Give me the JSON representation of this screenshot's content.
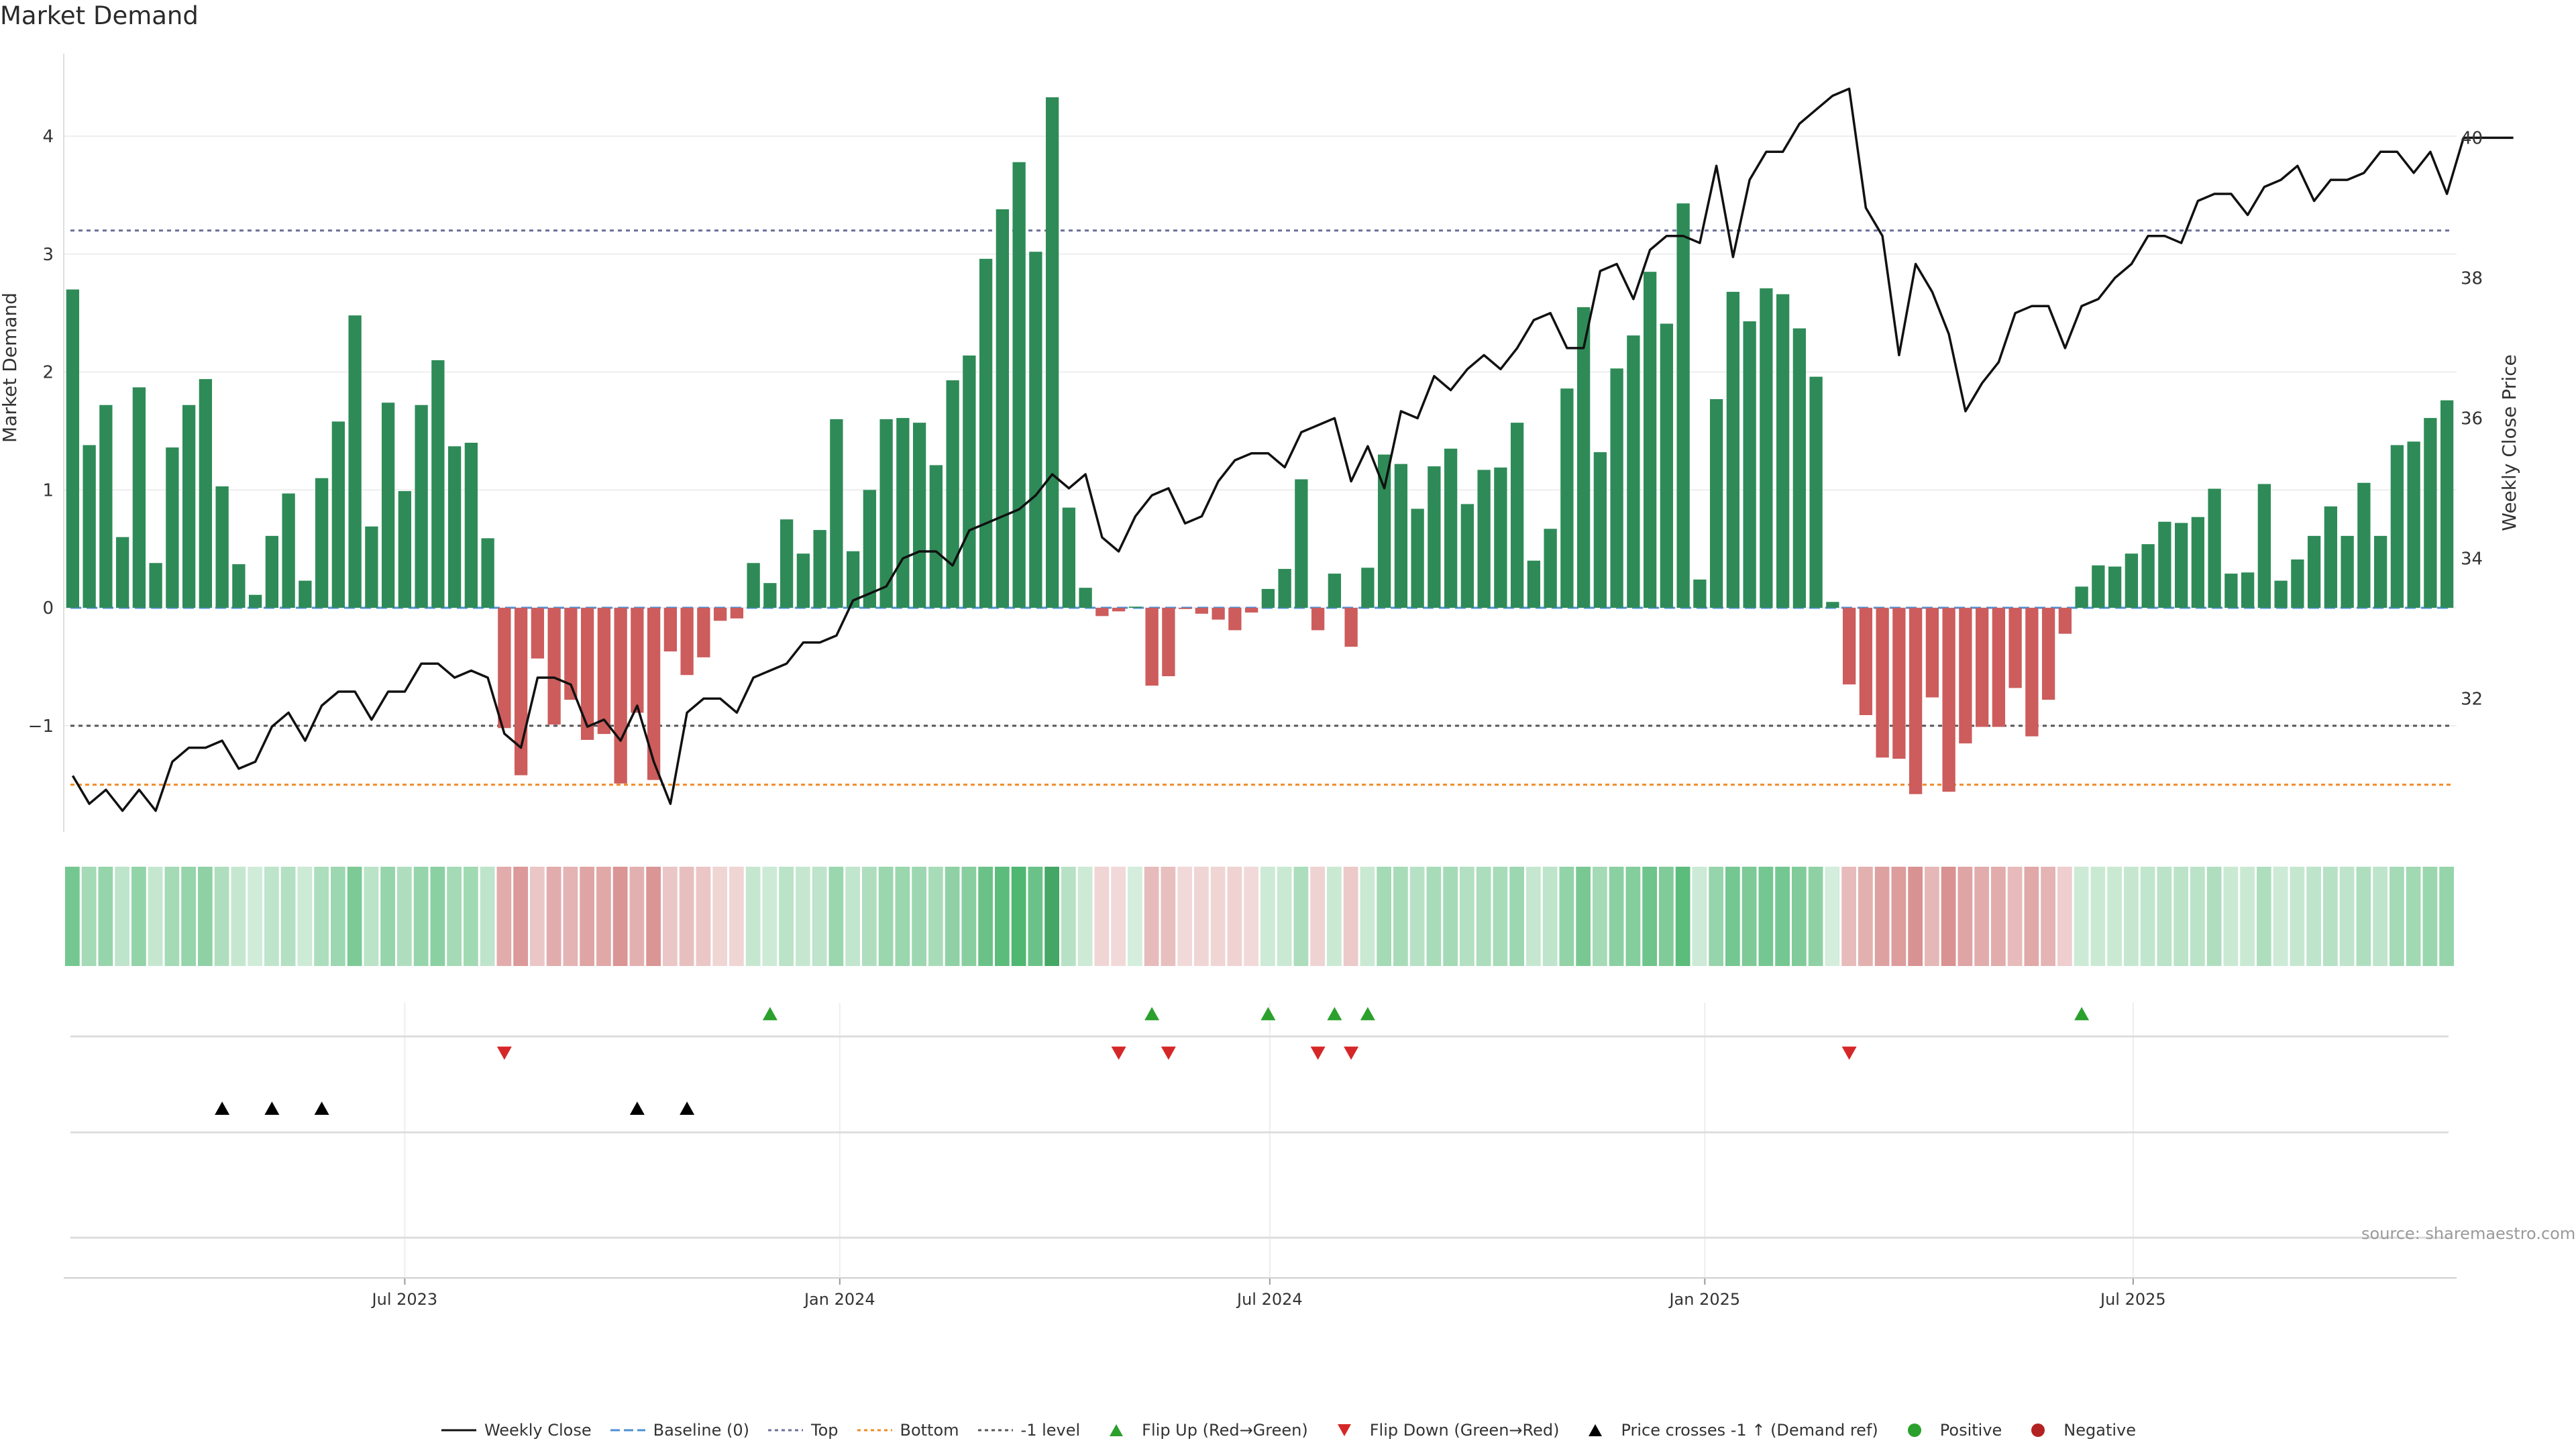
{
  "title": "Market Demand",
  "source": "source: sharemaestro.com",
  "colors": {
    "positive": "#2e8b57",
    "negative": "#cd5c5c",
    "price_line": "#111111",
    "baseline": "#4c8fd6",
    "top": "#6b6f9a",
    "bottom": "#f08a24",
    "minus1": "#555555",
    "flip_up": "#2ca02c",
    "flip_down": "#d62728",
    "cross": "#000000"
  },
  "legend": [
    {
      "label": "Weekly Close",
      "icon": "line-solid-icon",
      "color": "#111111"
    },
    {
      "label": "Baseline (0)",
      "icon": "line-dashed-icon",
      "color": "#4c8fd6"
    },
    {
      "label": "Top",
      "icon": "line-dotted-icon",
      "color": "#6b6f9a"
    },
    {
      "label": "Bottom",
      "icon": "line-dotted-icon",
      "color": "#f08a24"
    },
    {
      "label": "-1 level",
      "icon": "line-dotted-icon",
      "color": "#555555"
    },
    {
      "label": "Flip Up (Red→Green)",
      "icon": "triangle-up-icon",
      "color": "#2ca02c"
    },
    {
      "label": "Flip Down (Green→Red)",
      "icon": "triangle-down-icon",
      "color": "#d62728"
    },
    {
      "label": "Price crosses -1 ↑ (Demand ref)",
      "icon": "triangle-up-icon",
      "color": "#000000"
    },
    {
      "label": "Positive",
      "icon": "circle-icon",
      "color": "#2ca02c"
    },
    {
      "label": "Negative",
      "icon": "circle-icon",
      "color": "#b22222"
    }
  ],
  "chart_data": {
    "type": "bar",
    "ylabel": "Market Demand",
    "y2label": "Weekly Close Price",
    "ylim": [
      -1.9,
      4.7
    ],
    "y2lim": [
      30.1,
      41.2
    ],
    "y_ticks": [
      4,
      3,
      2,
      1,
      0,
      -1
    ],
    "y_tick_labels": [
      "4",
      "3",
      "2",
      "1",
      "0",
      "−1"
    ],
    "y2_ticks": [
      40,
      38,
      36,
      34,
      32
    ],
    "y2_tick_labels": [
      "40",
      "38",
      "36",
      "34",
      "32"
    ],
    "x_tick_labels": [
      "Jul 2023",
      "Jan 2024",
      "Jul 2024",
      "Jan 2025",
      "Jul 2025"
    ],
    "x_tick_weeks": [
      20.5,
      46.7,
      72.6,
      98.8,
      124.6
    ],
    "reference_lines": {
      "baseline": 0,
      "top": 3.2,
      "bottom": -1.5,
      "minus1": -1
    },
    "series": [
      {
        "name": "Market Demand",
        "values": [
          2.7,
          1.38,
          1.72,
          0.6,
          1.87,
          0.38,
          1.36,
          1.72,
          1.94,
          1.03,
          0.37,
          0.11,
          0.61,
          0.97,
          0.23,
          1.1,
          1.58,
          2.48,
          0.69,
          1.74,
          0.99,
          1.72,
          2.1,
          1.37,
          1.4,
          0.59,
          -1.02,
          -1.42,
          -0.43,
          -0.99,
          -0.78,
          -1.12,
          -1.07,
          -1.49,
          -0.89,
          -1.46,
          -0.37,
          -0.57,
          -0.42,
          -0.11,
          -0.09,
          0.38,
          0.21,
          0.75,
          0.46,
          0.66,
          1.6,
          0.48,
          1.0,
          1.6,
          1.61,
          1.57,
          1.21,
          1.93,
          2.14,
          2.96,
          3.38,
          3.78,
          3.02,
          4.33,
          0.85,
          0.17,
          -0.07,
          -0.03,
          0.01,
          -0.66,
          -0.58,
          -0.01,
          -0.05,
          -0.1,
          -0.19,
          -0.04,
          0.16,
          0.33,
          1.09,
          -0.19,
          0.29,
          -0.33,
          0.34,
          1.3,
          1.22,
          0.84,
          1.2,
          1.35,
          0.88,
          1.17,
          1.19,
          1.57,
          0.4,
          0.67,
          1.86,
          2.55,
          1.32,
          2.03,
          2.31,
          2.85,
          2.41,
          3.43,
          0.24,
          1.77,
          2.68,
          2.43,
          2.71,
          2.66,
          2.37,
          1.96,
          0.05,
          -0.65,
          -0.91,
          -1.27,
          -1.28,
          -1.58,
          -0.76,
          -1.56,
          -1.15,
          -1.01,
          -1.01,
          -0.68,
          -1.09,
          -0.78,
          -0.22,
          0.18,
          0.36,
          0.35,
          0.46,
          0.54,
          0.73,
          0.72,
          0.77,
          1.01,
          0.29,
          0.3,
          1.05,
          0.23,
          0.41,
          0.61,
          0.86,
          0.61,
          1.06,
          0.61,
          1.38,
          1.41,
          1.61,
          1.76
        ]
      },
      {
        "name": "Weekly Close",
        "values": [
          30.9,
          30.5,
          30.7,
          30.4,
          30.7,
          30.4,
          31.1,
          31.3,
          31.3,
          31.4,
          31.0,
          31.1,
          31.6,
          31.8,
          31.4,
          31.9,
          32.1,
          32.1,
          31.7,
          32.1,
          32.1,
          32.5,
          32.5,
          32.3,
          32.4,
          32.3,
          31.5,
          31.3,
          32.3,
          32.3,
          32.2,
          31.6,
          31.7,
          31.4,
          31.9,
          31.1,
          30.5,
          31.8,
          32.0,
          32.0,
          31.8,
          32.3,
          32.4,
          32.5,
          32.8,
          32.8,
          32.9,
          33.4,
          33.5,
          33.6,
          34.0,
          34.1,
          34.1,
          33.9,
          34.4,
          34.5,
          34.6,
          34.7,
          34.9,
          35.2,
          35.0,
          35.2,
          34.3,
          34.1,
          34.6,
          34.9,
          35.0,
          34.5,
          34.6,
          35.1,
          35.4,
          35.5,
          35.5,
          35.3,
          35.8,
          35.9,
          36.0,
          35.1,
          35.6,
          35.0,
          36.1,
          36.0,
          36.6,
          36.4,
          36.7,
          36.9,
          36.7,
          37.0,
          37.4,
          37.5,
          37.0,
          37.0,
          38.1,
          38.2,
          37.7,
          38.4,
          38.6,
          38.6,
          38.5,
          39.6,
          38.3,
          39.4,
          39.8,
          39.8,
          40.2,
          40.4,
          40.6,
          40.7,
          39.0,
          38.6,
          36.9,
          38.2,
          37.8,
          37.2,
          36.1,
          36.5,
          36.8,
          37.5,
          37.6,
          37.6,
          37.0,
          37.6,
          37.7,
          38.0,
          38.2,
          38.6,
          38.6,
          38.5,
          39.1,
          39.2,
          39.2,
          38.9,
          39.3,
          39.4,
          39.6,
          39.1,
          39.4,
          39.4,
          39.5,
          39.8,
          39.8,
          39.5,
          39.8,
          39.2,
          40.0,
          40.0,
          40.0,
          40.0
        ]
      }
    ],
    "flip_up_weeks": [
      42,
      65,
      72,
      76,
      78,
      121
    ],
    "flip_down_weeks": [
      26,
      63,
      66,
      75,
      77,
      107
    ],
    "price_cross_weeks": [
      9,
      12,
      15,
      34,
      37
    ]
  }
}
